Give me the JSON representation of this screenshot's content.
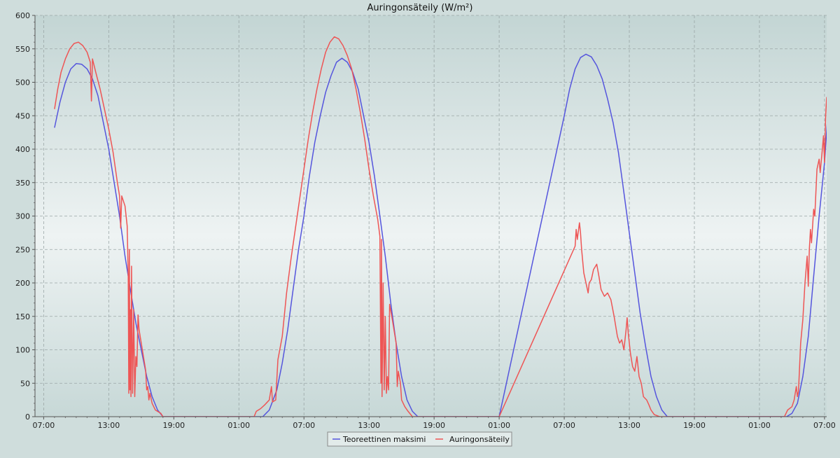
{
  "chart_data": {
    "type": "line",
    "title": "Auringonsäteily (W/m²)",
    "xlabel": "",
    "ylabel": "",
    "x_unit": "hours from first tick (07:00)",
    "xlim": [
      -0.8,
      72.2
    ],
    "ylim": [
      0,
      600
    ],
    "x_ticks": [
      {
        "x": 0,
        "label": "07:00"
      },
      {
        "x": 6,
        "label": "13:00"
      },
      {
        "x": 12,
        "label": "19:00"
      },
      {
        "x": 18,
        "label": "01:00"
      },
      {
        "x": 24,
        "label": "07:00"
      },
      {
        "x": 30,
        "label": "13:00"
      },
      {
        "x": 36,
        "label": "19:00"
      },
      {
        "x": 42,
        "label": "01:00"
      },
      {
        "x": 48,
        "label": "07:00"
      },
      {
        "x": 54,
        "label": "13:00"
      },
      {
        "x": 60,
        "label": "19:00"
      },
      {
        "x": 66,
        "label": "01:00"
      },
      {
        "x": 72,
        "label": "07:00"
      }
    ],
    "y_ticks": [
      0,
      50,
      100,
      150,
      200,
      250,
      300,
      350,
      400,
      450,
      500,
      550,
      600
    ],
    "grid": true,
    "legend_position": "bottom-center",
    "series": [
      {
        "name": "Teoreettinen maksimi",
        "color": "#5555dd",
        "points": [
          [
            1,
            432
          ],
          [
            1.5,
            470
          ],
          [
            2,
            500
          ],
          [
            2.5,
            520
          ],
          [
            3,
            528
          ],
          [
            3.5,
            527
          ],
          [
            4,
            520
          ],
          [
            4.5,
            505
          ],
          [
            5,
            480
          ],
          [
            5.5,
            440
          ],
          [
            6,
            400
          ],
          [
            6.5,
            350
          ],
          [
            7,
            300
          ],
          [
            7.5,
            240
          ],
          [
            8,
            190
          ],
          [
            8.5,
            140
          ],
          [
            9,
            100
          ],
          [
            9.5,
            60
          ],
          [
            10,
            30
          ],
          [
            10.5,
            10
          ],
          [
            11,
            0
          ],
          [
            20.2,
            0
          ],
          [
            20.8,
            10
          ],
          [
            21.5,
            40
          ],
          [
            22,
            80
          ],
          [
            22.5,
            130
          ],
          [
            23,
            190
          ],
          [
            23.5,
            250
          ],
          [
            24,
            300
          ],
          [
            24.5,
            360
          ],
          [
            25,
            410
          ],
          [
            25.5,
            450
          ],
          [
            26,
            485
          ],
          [
            26.5,
            510
          ],
          [
            27,
            530
          ],
          [
            27.5,
            536
          ],
          [
            28,
            530
          ],
          [
            28.5,
            515
          ],
          [
            29,
            490
          ],
          [
            29.5,
            450
          ],
          [
            30,
            410
          ],
          [
            30.5,
            360
          ],
          [
            31,
            300
          ],
          [
            31.5,
            240
          ],
          [
            32,
            170
          ],
          [
            32.5,
            110
          ],
          [
            33,
            60
          ],
          [
            33.5,
            25
          ],
          [
            34,
            8
          ],
          [
            34.5,
            0
          ],
          [
            42,
            0
          ],
          [
            48,
            450
          ],
          [
            48.5,
            490
          ],
          [
            49,
            520
          ],
          [
            49.5,
            537
          ],
          [
            50,
            542
          ],
          [
            50.5,
            538
          ],
          [
            51,
            525
          ],
          [
            51.5,
            505
          ],
          [
            52,
            475
          ],
          [
            52.5,
            440
          ],
          [
            53,
            395
          ],
          [
            53.5,
            335
          ],
          [
            54,
            275
          ],
          [
            54.5,
            215
          ],
          [
            55,
            155
          ],
          [
            55.5,
            105
          ],
          [
            56,
            60
          ],
          [
            56.5,
            30
          ],
          [
            57,
            10
          ],
          [
            57.5,
            0
          ],
          [
            68.5,
            0
          ],
          [
            69,
            5
          ],
          [
            69.5,
            20
          ],
          [
            70,
            60
          ],
          [
            70.5,
            120
          ],
          [
            71,
            210
          ],
          [
            71.5,
            300
          ],
          [
            72,
            380
          ],
          [
            72.3,
            450
          ]
        ]
      },
      {
        "name": "Auringonsäteily",
        "color": "#ee5555",
        "points": [
          [
            1,
            460
          ],
          [
            1.3,
            490
          ],
          [
            1.6,
            515
          ],
          [
            2,
            535
          ],
          [
            2.4,
            550
          ],
          [
            2.8,
            558
          ],
          [
            3.2,
            560
          ],
          [
            3.6,
            555
          ],
          [
            4,
            545
          ],
          [
            4.3,
            530
          ],
          [
            4.4,
            472
          ],
          [
            4.5,
            535
          ],
          [
            4.8,
            515
          ],
          [
            5.2,
            490
          ],
          [
            5.6,
            460
          ],
          [
            6,
            430
          ],
          [
            6.4,
            395
          ],
          [
            6.8,
            350
          ],
          [
            7,
            330
          ],
          [
            7.1,
            282
          ],
          [
            7.2,
            330
          ],
          [
            7.5,
            315
          ],
          [
            7.7,
            285
          ],
          [
            7.8,
            210
          ],
          [
            7.85,
            35
          ],
          [
            7.9,
            250
          ],
          [
            7.95,
            40
          ],
          [
            8.0,
            160
          ],
          [
            8.05,
            30
          ],
          [
            8.1,
            225
          ],
          [
            8.2,
            35
          ],
          [
            8.3,
            160
          ],
          [
            8.4,
            30
          ],
          [
            8.5,
            90
          ],
          [
            8.6,
            75
          ],
          [
            8.7,
            152
          ],
          [
            8.8,
            130
          ],
          [
            9,
            110
          ],
          [
            9.2,
            90
          ],
          [
            9.4,
            70
          ],
          [
            9.5,
            40
          ],
          [
            9.6,
            45
          ],
          [
            9.7,
            25
          ],
          [
            9.8,
            35
          ],
          [
            10,
            20
          ],
          [
            10.3,
            10
          ],
          [
            10.8,
            5
          ],
          [
            11,
            0
          ],
          [
            19.4,
            0
          ],
          [
            19.6,
            8
          ],
          [
            20,
            12
          ],
          [
            20.4,
            18
          ],
          [
            20.8,
            25
          ],
          [
            21,
            45
          ],
          [
            21.1,
            22
          ],
          [
            21.4,
            25
          ],
          [
            21.6,
            85
          ],
          [
            22,
            120
          ],
          [
            22.4,
            185
          ],
          [
            22.8,
            235
          ],
          [
            23.2,
            280
          ],
          [
            23.6,
            325
          ],
          [
            24,
            370
          ],
          [
            24.4,
            415
          ],
          [
            24.8,
            455
          ],
          [
            25.2,
            490
          ],
          [
            25.6,
            520
          ],
          [
            26,
            545
          ],
          [
            26.4,
            560
          ],
          [
            26.8,
            568
          ],
          [
            27.2,
            565
          ],
          [
            27.6,
            555
          ],
          [
            28,
            540
          ],
          [
            28.4,
            520
          ],
          [
            28.8,
            490
          ],
          [
            29.2,
            455
          ],
          [
            29.6,
            415
          ],
          [
            30,
            370
          ],
          [
            30.4,
            330
          ],
          [
            30.8,
            295
          ],
          [
            31,
            270
          ],
          [
            31.1,
            50
          ],
          [
            31.15,
            265
          ],
          [
            31.2,
            30
          ],
          [
            31.3,
            200
          ],
          [
            31.4,
            40
          ],
          [
            31.5,
            150
          ],
          [
            31.6,
            35
          ],
          [
            31.7,
            60
          ],
          [
            31.8,
            40
          ],
          [
            31.9,
            168
          ],
          [
            32.1,
            150
          ],
          [
            32.3,
            130
          ],
          [
            32.5,
            110
          ],
          [
            32.6,
            45
          ],
          [
            32.7,
            68
          ],
          [
            32.9,
            50
          ],
          [
            33,
            25
          ],
          [
            33.3,
            15
          ],
          [
            33.6,
            8
          ],
          [
            34,
            0
          ],
          [
            42,
            0
          ],
          [
            49.0,
            255
          ],
          [
            49.1,
            280
          ],
          [
            49.2,
            265
          ],
          [
            49.4,
            290
          ],
          [
            49.5,
            275
          ],
          [
            49.6,
            250
          ],
          [
            49.8,
            215
          ],
          [
            50,
            200
          ],
          [
            50.2,
            185
          ],
          [
            50.3,
            200
          ],
          [
            50.5,
            205
          ],
          [
            50.7,
            220
          ],
          [
            51,
            228
          ],
          [
            51.2,
            210
          ],
          [
            51.4,
            190
          ],
          [
            51.7,
            180
          ],
          [
            52,
            185
          ],
          [
            52.3,
            175
          ],
          [
            52.6,
            150
          ],
          [
            52.9,
            120
          ],
          [
            53.1,
            110
          ],
          [
            53.3,
            115
          ],
          [
            53.5,
            100
          ],
          [
            53.7,
            130
          ],
          [
            53.8,
            148
          ],
          [
            53.9,
            125
          ],
          [
            54.1,
            95
          ],
          [
            54.3,
            75
          ],
          [
            54.5,
            68
          ],
          [
            54.7,
            90
          ],
          [
            54.9,
            60
          ],
          [
            55.1,
            50
          ],
          [
            55.3,
            30
          ],
          [
            55.6,
            25
          ],
          [
            55.8,
            18
          ],
          [
            56,
            10
          ],
          [
            56.3,
            3
          ],
          [
            56.8,
            0
          ],
          [
            68.3,
            0
          ],
          [
            68.6,
            10
          ],
          [
            69,
            15
          ],
          [
            69.2,
            25
          ],
          [
            69.4,
            45
          ],
          [
            69.5,
            30
          ],
          [
            69.6,
            38
          ],
          [
            69.8,
            110
          ],
          [
            70,
            145
          ],
          [
            70.2,
            200
          ],
          [
            70.4,
            240
          ],
          [
            70.5,
            195
          ],
          [
            70.6,
            250
          ],
          [
            70.7,
            280
          ],
          [
            70.8,
            260
          ],
          [
            71,
            310
          ],
          [
            71.1,
            300
          ],
          [
            71.3,
            370
          ],
          [
            71.5,
            385
          ],
          [
            71.6,
            365
          ],
          [
            71.8,
            400
          ],
          [
            71.9,
            420
          ],
          [
            72,
            380
          ],
          [
            72.1,
            450
          ],
          [
            72.2,
            478
          ]
        ]
      }
    ]
  }
}
